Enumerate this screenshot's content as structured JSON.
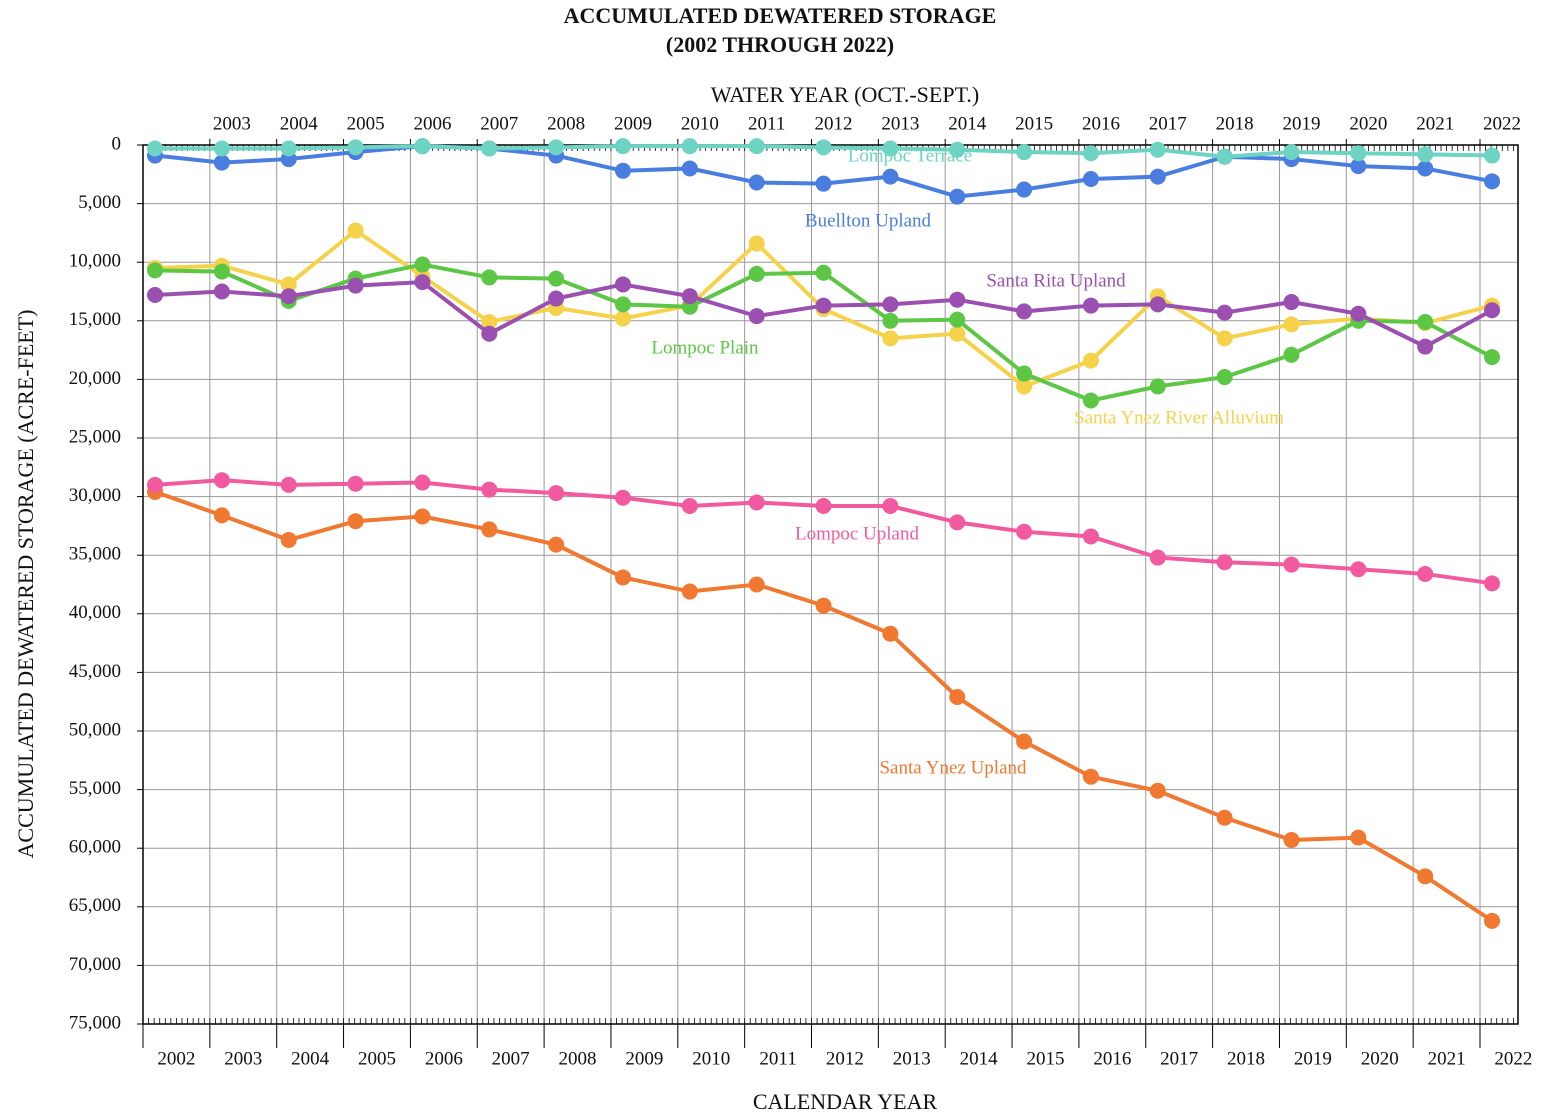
{
  "chart_data": {
    "type": "line",
    "title": "ACCUMULATED DEWATERED STORAGE",
    "subtitle": "(2002 THROUGH 2022)",
    "x2_label": "WATER YEAR (OCT.-SEPT.)",
    "x_label": "CALENDAR YEAR",
    "y_label": "ACCUMULATED DEWATERED STORAGE (ACRE-FEET)",
    "categories": [
      "2002",
      "2003",
      "2004",
      "2005",
      "2006",
      "2007",
      "2008",
      "2009",
      "2010",
      "2011",
      "2012",
      "2013",
      "2014",
      "2015",
      "2016",
      "2017",
      "2018",
      "2019",
      "2020",
      "2021",
      "2022"
    ],
    "water_years": [
      "2003",
      "2004",
      "2005",
      "2006",
      "2007",
      "2008",
      "2009",
      "2010",
      "2011",
      "2012",
      "2013",
      "2014",
      "2015",
      "2016",
      "2017",
      "2018",
      "2019",
      "2020",
      "2021",
      "2022"
    ],
    "y_inverted": true,
    "grid": true,
    "ylim": [
      0,
      75000
    ],
    "yticks": [
      0,
      {
        "value": 5000,
        "label": "5,000"
      },
      {
        "value": 10000,
        "label": "10,000"
      },
      {
        "value": 15000,
        "label": "15,000"
      },
      {
        "value": 20000,
        "label": "20,000"
      },
      {
        "value": 25000,
        "label": "25,000"
      },
      {
        "value": 30000,
        "label": "30,000"
      },
      {
        "value": 35000,
        "label": "35,000"
      },
      {
        "value": 40000,
        "label": "40,000"
      },
      {
        "value": 45000,
        "label": "45,000"
      },
      {
        "value": 50000,
        "label": "50,000"
      },
      {
        "value": 55000,
        "label": "55,000"
      },
      {
        "value": 60000,
        "label": "60,000"
      },
      {
        "value": 65000,
        "label": "65,000"
      },
      {
        "value": 70000,
        "label": "70,000"
      },
      {
        "value": 75000,
        "label": "75,000"
      }
    ],
    "series": [
      {
        "name": "Lompoc Terrace",
        "color": "#6dd3c3",
        "values": [
          300,
          300,
          300,
          200,
          100,
          300,
          200,
          100,
          100,
          100,
          200,
          300,
          400,
          600,
          700,
          400,
          1000,
          600,
          700,
          800,
          900
        ]
      },
      {
        "name": "Buellton Upland",
        "color": "#4a7de0",
        "values": [
          900,
          1500,
          1200,
          600,
          100,
          300,
          900,
          2200,
          2000,
          3200,
          3300,
          2700,
          4400,
          3800,
          2900,
          2700,
          1000,
          1200,
          1800,
          2000,
          3100
        ]
      },
      {
        "name": "Santa Rita Upland",
        "color": "#9b4fb0",
        "values": [
          12800,
          12500,
          12900,
          12000,
          11700,
          16100,
          13100,
          11900,
          12900,
          14600,
          13700,
          13600,
          13200,
          14200,
          13700,
          13600,
          14300,
          13400,
          14400,
          17200,
          14100
        ]
      },
      {
        "name": "Lompoc Plain",
        "color": "#5cc645",
        "values": [
          10700,
          10800,
          13300,
          11400,
          10200,
          11300,
          11400,
          13600,
          13800,
          11000,
          10900,
          15000,
          14900,
          19500,
          21800,
          20600,
          19800,
          17900,
          15000,
          15100,
          18100
        ]
      },
      {
        "name": "Santa Ynez River Alluvium",
        "color": "#f5d24a",
        "values": [
          10500,
          10300,
          11900,
          7300,
          11200,
          15100,
          13900,
          14800,
          13700,
          8400,
          14000,
          16500,
          16100,
          20600,
          18400,
          12900,
          16500,
          15300,
          14800,
          15200,
          13700
        ]
      },
      {
        "name": "Lompoc Upland",
        "color": "#f25aa0",
        "values": [
          29000,
          28600,
          29000,
          28900,
          28800,
          29400,
          29700,
          30100,
          30800,
          30500,
          30800,
          30800,
          32200,
          33000,
          33400,
          35200,
          35600,
          35800,
          36200,
          36600,
          37400
        ]
      },
      {
        "name": "Santa Ynez Upland",
        "color": "#f07830",
        "values": [
          29600,
          31600,
          33700,
          32100,
          31700,
          32800,
          34100,
          36900,
          38100,
          37500,
          39300,
          41700,
          47100,
          50900,
          53900,
          55100,
          57400,
          59300,
          59100,
          62400,
          66200
        ]
      }
    ]
  }
}
